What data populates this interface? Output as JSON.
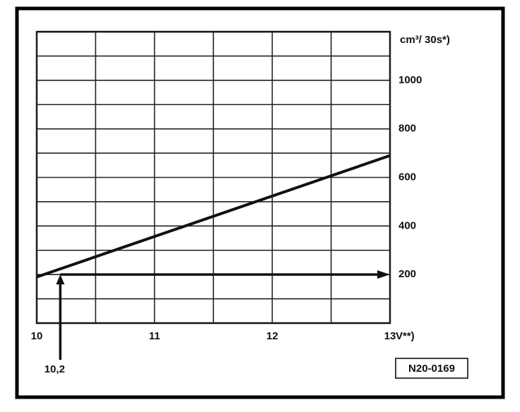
{
  "chart_data": {
    "type": "line",
    "x": [
      10,
      13
    ],
    "series": [
      {
        "values": [
          190,
          690
        ],
        "color": "#111111"
      }
    ],
    "xlim": [
      10,
      13
    ],
    "xticks": [
      10,
      11,
      12,
      13
    ],
    "x_minor_ticks": [
      10.5,
      11.5,
      12.5
    ],
    "ylim": [
      0,
      1200
    ],
    "yticks": [
      200,
      400,
      600,
      800,
      1000
    ],
    "y_minor_ticks": [
      100,
      300,
      500,
      700,
      900,
      1100
    ],
    "grid": true,
    "xlabel": "V**)",
    "ylabel": "cm³/ 30s*)",
    "annotations": [
      {
        "text": "10,2",
        "x": 10.2,
        "y": 200
      }
    ],
    "figure_id": "N20-0169"
  }
}
